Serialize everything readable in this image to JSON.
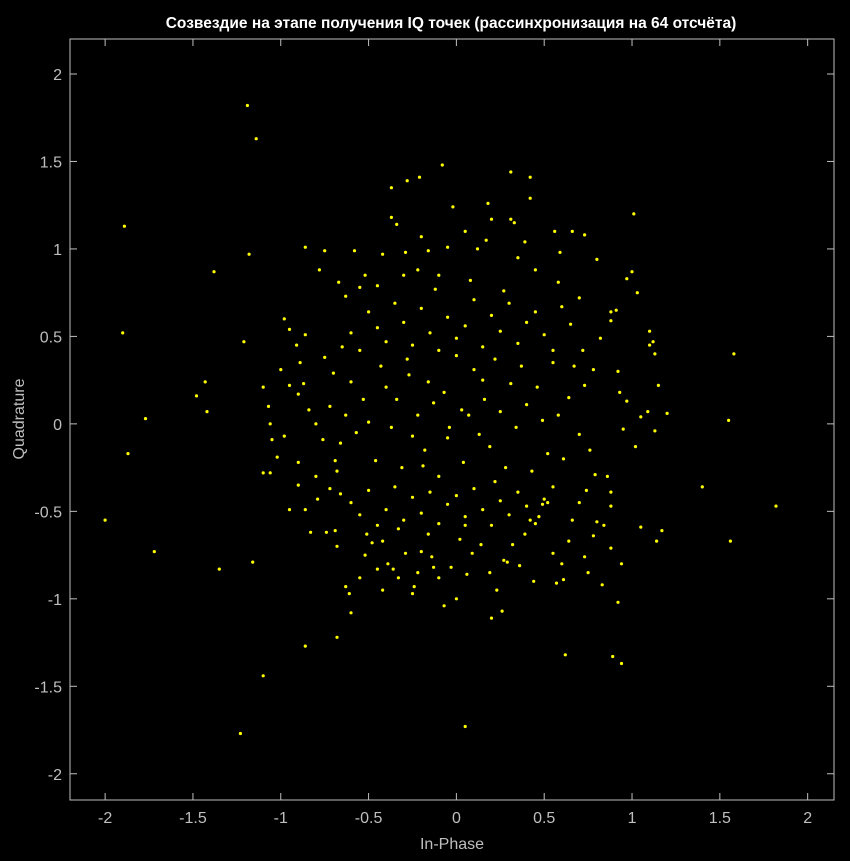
{
  "chart_data": {
    "type": "scatter",
    "title": "Созвездие на этапе получения IQ точек (рассинхронизация на 64 отсчёта)",
    "xlabel": "In-Phase",
    "ylabel": "Quadrature",
    "xlim": [
      -2.2,
      2.15
    ],
    "ylim": [
      -2.15,
      2.2
    ],
    "xticks": [
      -2,
      -1.5,
      -1,
      -0.5,
      0,
      0.5,
      1,
      1.5,
      2
    ],
    "xtick_labels": [
      "-2",
      "-1.5",
      "-1",
      "-0.5",
      "0",
      "0.5",
      "1",
      "1.5",
      "2"
    ],
    "yticks": [
      -2,
      -1.5,
      -1,
      -0.5,
      0,
      0.5,
      1,
      1.5,
      2
    ],
    "ytick_labels": [
      "-2",
      "-1.5",
      "-1",
      "-0.5",
      "0",
      "0.5",
      "1",
      "1.5",
      "2"
    ],
    "grid": false,
    "background": "#000000",
    "axis_color": "#bfbfbf",
    "marker_color": "#ffff00",
    "points": [
      [
        -1.19,
        1.82
      ],
      [
        -1.14,
        1.63
      ],
      [
        -1.89,
        1.13
      ],
      [
        -1.18,
        0.97
      ],
      [
        -1.38,
        0.87
      ],
      [
        -1.9,
        0.52
      ],
      [
        -1.21,
        0.47
      ],
      [
        -1.43,
        0.24
      ],
      [
        -1.48,
        0.16
      ],
      [
        -1.42,
        0.07
      ],
      [
        -1.77,
        0.03
      ],
      [
        -1.87,
        -0.17
      ],
      [
        -2.0,
        -0.55
      ],
      [
        -1.72,
        -0.73
      ],
      [
        -1.35,
        -0.83
      ],
      [
        -1.16,
        -0.79
      ],
      [
        -1.1,
        -1.44
      ],
      [
        -1.23,
        -1.77
      ],
      [
        -0.86,
        -1.27
      ],
      [
        -0.68,
        -1.22
      ],
      [
        0.05,
        -1.73
      ],
      [
        0.62,
        -1.32
      ],
      [
        0.89,
        -1.33
      ],
      [
        0.94,
        -1.37
      ],
      [
        0.92,
        -1.02
      ],
      [
        1.01,
        1.2
      ],
      [
        1.55,
        0.02
      ],
      [
        1.4,
        -0.36
      ],
      [
        1.56,
        -0.67
      ],
      [
        1.82,
        -0.47
      ],
      [
        1.58,
        0.4
      ],
      [
        1.2,
        0.06
      ],
      [
        -0.08,
        1.48
      ],
      [
        -0.21,
        1.41
      ],
      [
        -0.37,
        1.35
      ],
      [
        -0.28,
        1.39
      ],
      [
        0.31,
        1.44
      ],
      [
        0.42,
        1.41
      ],
      [
        0.42,
        1.29
      ],
      [
        0.18,
        1.26
      ],
      [
        -1.1,
        0.21
      ],
      [
        -1.1,
        -0.28
      ],
      [
        -1.06,
        -0.28
      ],
      [
        -1.0,
        0.31
      ],
      [
        -0.98,
        0.6
      ],
      [
        -0.95,
        0.54
      ],
      [
        -0.91,
        0.45
      ],
      [
        -0.89,
        0.35
      ],
      [
        -0.86,
        0.51
      ],
      [
        -0.86,
        1.01
      ],
      [
        -0.75,
        0.99
      ],
      [
        -0.67,
        0.81
      ],
      [
        -0.63,
        0.73
      ],
      [
        -0.58,
        0.99
      ],
      [
        -0.52,
        0.85
      ],
      [
        -0.45,
        0.79
      ],
      [
        -0.42,
        0.97
      ],
      [
        -0.37,
        1.18
      ],
      [
        -0.34,
        1.14
      ],
      [
        -0.29,
        0.98
      ],
      [
        -0.22,
        0.88
      ],
      [
        -0.2,
        1.07
      ],
      [
        -0.16,
        0.99
      ],
      [
        -0.1,
        0.85
      ],
      [
        -0.05,
        1.01
      ],
      [
        -0.02,
        1.24
      ],
      [
        0.05,
        1.1
      ],
      [
        0.17,
        1.05
      ],
      [
        0.2,
        1.17
      ],
      [
        0.31,
        1.17
      ],
      [
        0.33,
        1.15
      ],
      [
        0.39,
        1.04
      ],
      [
        0.56,
        1.1
      ],
      [
        0.59,
        0.98
      ],
      [
        0.66,
        1.1
      ],
      [
        0.73,
        1.08
      ],
      [
        0.8,
        0.94
      ],
      [
        0.97,
        0.83
      ],
      [
        1.0,
        0.87
      ],
      [
        1.03,
        0.75
      ],
      [
        0.88,
        0.64
      ],
      [
        0.91,
        0.65
      ],
      [
        0.88,
        0.59
      ],
      [
        1.1,
        0.53
      ],
      [
        1.12,
        0.47
      ],
      [
        1.1,
        0.45
      ],
      [
        1.13,
        0.4
      ],
      [
        1.15,
        0.22
      ],
      [
        1.09,
        0.07
      ],
      [
        1.13,
        -0.04
      ],
      [
        1.05,
        0.04
      ],
      [
        1.02,
        -0.13
      ],
      [
        0.97,
        0.13
      ],
      [
        0.95,
        -0.03
      ],
      [
        0.93,
        0.18
      ],
      [
        0.86,
        -0.3
      ],
      [
        0.88,
        -0.39
      ],
      [
        0.88,
        -0.47
      ],
      [
        0.84,
        -0.58
      ],
      [
        0.8,
        -0.56
      ],
      [
        0.78,
        -0.64
      ],
      [
        0.73,
        -0.76
      ],
      [
        0.75,
        -0.85
      ],
      [
        0.88,
        -0.71
      ],
      [
        0.94,
        -0.8
      ],
      [
        1.05,
        -0.59
      ],
      [
        1.14,
        -0.67
      ],
      [
        1.17,
        -0.61
      ],
      [
        -1.07,
        0.1
      ],
      [
        -1.06,
        0.0
      ],
      [
        -1.05,
        -0.09
      ],
      [
        -1.02,
        -0.19
      ],
      [
        -0.98,
        -0.07
      ],
      [
        -0.95,
        -0.49
      ],
      [
        -0.9,
        -0.35
      ],
      [
        -0.86,
        -0.49
      ],
      [
        -0.83,
        -0.62
      ],
      [
        -0.79,
        -0.43
      ],
      [
        -0.74,
        -0.62
      ],
      [
        -0.69,
        -0.61
      ],
      [
        -0.66,
        -0.4
      ],
      [
        -0.63,
        -0.93
      ],
      [
        -0.61,
        -0.97
      ],
      [
        -0.6,
        -1.08
      ],
      [
        -0.55,
        -0.88
      ],
      [
        -0.51,
        -0.63
      ],
      [
        -0.48,
        -0.68
      ],
      [
        -0.45,
        -0.83
      ],
      [
        -0.42,
        -0.67
      ],
      [
        -0.39,
        -0.8
      ],
      [
        -0.36,
        -0.83
      ],
      [
        -0.33,
        -0.6
      ],
      [
        -0.29,
        -0.74
      ],
      [
        -0.25,
        -0.97
      ],
      [
        -0.24,
        -0.93
      ],
      [
        -0.22,
        -0.85
      ],
      [
        -0.2,
        -0.73
      ],
      [
        -0.16,
        -0.63
      ],
      [
        -0.13,
        -0.82
      ],
      [
        -0.1,
        -0.88
      ],
      [
        -0.07,
        -1.04
      ],
      [
        -0.03,
        -0.82
      ],
      [
        0.02,
        -0.66
      ],
      [
        0.05,
        -0.58
      ],
      [
        0.09,
        -0.74
      ],
      [
        0.14,
        -0.69
      ],
      [
        0.19,
        -0.85
      ],
      [
        0.2,
        -1.11
      ],
      [
        0.23,
        -0.95
      ],
      [
        0.26,
        -1.07
      ],
      [
        0.29,
        -0.79
      ],
      [
        0.32,
        -0.69
      ],
      [
        0.36,
        -0.81
      ],
      [
        0.39,
        -0.63
      ],
      [
        0.42,
        -0.55
      ],
      [
        0.47,
        -0.53
      ],
      [
        0.49,
        -0.46
      ],
      [
        0.52,
        -0.45
      ],
      [
        0.55,
        -0.74
      ],
      [
        0.57,
        -0.91
      ],
      [
        0.61,
        -0.89
      ],
      [
        0.64,
        -0.67
      ],
      [
        0.66,
        -0.55
      ],
      [
        -0.95,
        0.22
      ],
      [
        -0.9,
        0.17
      ],
      [
        -0.87,
        0.23
      ],
      [
        -0.84,
        0.08
      ],
      [
        -0.8,
        0.0
      ],
      [
        -0.76,
        -0.09
      ],
      [
        -0.72,
        0.1
      ],
      [
        -0.69,
        -0.21
      ],
      [
        -0.66,
        -0.11
      ],
      [
        -0.63,
        0.05
      ],
      [
        -0.6,
        0.24
      ],
      [
        -0.57,
        -0.05
      ],
      [
        -0.53,
        0.14
      ],
      [
        -0.5,
        0.01
      ],
      [
        -0.46,
        -0.21
      ],
      [
        -0.43,
        0.33
      ],
      [
        -0.4,
        0.21
      ],
      [
        -0.37,
        -0.02
      ],
      [
        -0.34,
        0.14
      ],
      [
        -0.31,
        -0.25
      ],
      [
        -0.28,
        0.37
      ],
      [
        -0.25,
        -0.07
      ],
      [
        -0.22,
        0.05
      ],
      [
        -0.19,
        -0.24
      ],
      [
        -0.16,
        0.24
      ],
      [
        -0.13,
        0.12
      ],
      [
        -0.1,
        -0.3
      ],
      [
        -0.07,
        0.18
      ],
      [
        -0.04,
        -0.02
      ],
      [
        0.0,
        0.39
      ],
      [
        0.04,
        -0.22
      ],
      [
        0.07,
        0.05
      ],
      [
        0.1,
        0.31
      ],
      [
        0.13,
        -0.06
      ],
      [
        0.16,
        0.14
      ],
      [
        0.19,
        -0.13
      ],
      [
        0.22,
        0.37
      ],
      [
        0.25,
        0.07
      ],
      [
        0.28,
        -0.25
      ],
      [
        0.31,
        0.23
      ],
      [
        0.34,
        -0.02
      ],
      [
        0.37,
        0.33
      ],
      [
        0.4,
        0.11
      ],
      [
        0.43,
        -0.27
      ],
      [
        0.46,
        0.21
      ],
      [
        0.49,
        0.02
      ],
      [
        0.52,
        -0.17
      ],
      [
        0.55,
        0.35
      ],
      [
        0.58,
        0.05
      ],
      [
        0.61,
        -0.2
      ],
      [
        0.64,
        0.15
      ],
      [
        0.67,
        0.33
      ],
      [
        0.7,
        -0.06
      ],
      [
        0.73,
        0.22
      ],
      [
        0.76,
        -0.15
      ],
      [
        -0.6,
        0.52
      ],
      [
        -0.55,
        0.42
      ],
      [
        -0.5,
        0.64
      ],
      [
        -0.45,
        0.55
      ],
      [
        -0.4,
        0.47
      ],
      [
        -0.35,
        0.69
      ],
      [
        -0.3,
        0.58
      ],
      [
        -0.25,
        0.45
      ],
      [
        -0.2,
        0.66
      ],
      [
        -0.15,
        0.52
      ],
      [
        -0.1,
        0.42
      ],
      [
        -0.05,
        0.61
      ],
      [
        0.0,
        0.49
      ],
      [
        0.05,
        0.56
      ],
      [
        0.1,
        0.71
      ],
      [
        0.15,
        0.44
      ],
      [
        0.2,
        0.62
      ],
      [
        0.25,
        0.53
      ],
      [
        0.3,
        0.69
      ],
      [
        0.35,
        0.46
      ],
      [
        0.4,
        0.58
      ],
      [
        0.45,
        0.64
      ],
      [
        0.5,
        0.51
      ],
      [
        0.55,
        0.42
      ],
      [
        0.6,
        0.67
      ],
      [
        0.65,
        0.57
      ],
      [
        -0.6,
        -0.45
      ],
      [
        -0.55,
        -0.52
      ],
      [
        -0.5,
        -0.38
      ],
      [
        -0.45,
        -0.58
      ],
      [
        -0.4,
        -0.49
      ],
      [
        -0.35,
        -0.36
      ],
      [
        -0.3,
        -0.55
      ],
      [
        -0.25,
        -0.42
      ],
      [
        -0.2,
        -0.51
      ],
      [
        -0.15,
        -0.39
      ],
      [
        -0.1,
        -0.57
      ],
      [
        -0.05,
        -0.46
      ],
      [
        0.0,
        -0.41
      ],
      [
        0.05,
        -0.53
      ],
      [
        0.1,
        -0.37
      ],
      [
        0.15,
        -0.49
      ],
      [
        0.2,
        -0.58
      ],
      [
        0.25,
        -0.44
      ],
      [
        0.3,
        -0.52
      ],
      [
        0.35,
        -0.39
      ],
      [
        0.4,
        -0.47
      ],
      [
        0.45,
        -0.57
      ],
      [
        0.5,
        -0.43
      ],
      [
        0.55,
        -0.36
      ],
      [
        -0.75,
        0.38
      ],
      [
        -0.7,
        0.29
      ],
      [
        -0.65,
        0.44
      ],
      [
        -0.8,
        -0.3
      ],
      [
        -0.72,
        -0.37
      ],
      [
        -0.68,
        -0.27
      ],
      [
        0.72,
        0.42
      ],
      [
        0.78,
        0.31
      ],
      [
        0.82,
        0.49
      ],
      [
        0.74,
        -0.38
      ],
      [
        0.79,
        -0.29
      ],
      [
        0.7,
        -0.45
      ],
      [
        -0.3,
        0.85
      ],
      [
        -0.12,
        0.77
      ],
      [
        0.08,
        0.82
      ],
      [
        0.27,
        0.76
      ],
      [
        0.45,
        0.88
      ],
      [
        -0.33,
        -0.88
      ],
      [
        -0.14,
        -0.76
      ],
      [
        0.06,
        -0.86
      ],
      [
        0.27,
        -0.78
      ],
      [
        0.44,
        -0.9
      ],
      [
        0.58,
        0.81
      ],
      [
        -0.55,
        0.78
      ],
      [
        0.6,
        -0.8
      ],
      [
        -0.52,
        -0.75
      ],
      [
        0.12,
        1.0
      ],
      [
        0.0,
        -1.0
      ],
      [
        -0.78,
        0.88
      ],
      [
        0.83,
        -0.92
      ],
      [
        0.35,
        0.95
      ],
      [
        -0.42,
        -0.95
      ],
      [
        0.7,
        0.72
      ],
      [
        -0.68,
        -0.7
      ],
      [
        0.92,
        0.3
      ],
      [
        -0.9,
        -0.22
      ],
      [
        0.15,
        0.25
      ],
      [
        -0.18,
        -0.15
      ],
      [
        0.22,
        -0.33
      ],
      [
        -0.27,
        0.28
      ],
      [
        0.03,
        0.08
      ],
      [
        -0.05,
        -0.08
      ]
    ]
  }
}
